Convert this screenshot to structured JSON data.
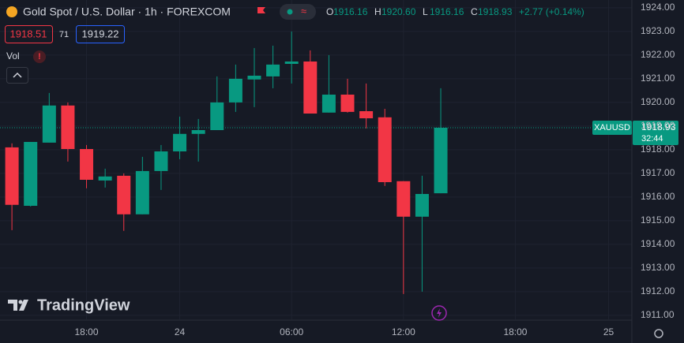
{
  "header": {
    "title": "Gold Spot / U.S. Dollar · 1h · FOREXCOM",
    "ohlc": [
      {
        "key": "O",
        "value": "1916.16"
      },
      {
        "key": "H",
        "value": "1920.60"
      },
      {
        "key": "L",
        "value": "1916.16"
      },
      {
        "key": "C",
        "value": "1918.93"
      }
    ],
    "change": "+2.77 (+0.14%)",
    "bid": "1918.51",
    "spread": "71",
    "ask": "1919.22",
    "volume_label": "Vol"
  },
  "price_tag": {
    "symbol": "XAUUSD",
    "price": "1918.93",
    "countdown": "32:44"
  },
  "logo": "TradingView",
  "chart_data": {
    "type": "candlestick",
    "ylim": [
      1910.83,
      1924.33
    ],
    "yticks": [
      {
        "value": 1911,
        "label": "1911.00"
      },
      {
        "value": 1912,
        "label": "1912.00"
      },
      {
        "value": 1913,
        "label": "1913.00"
      },
      {
        "value": 1914,
        "label": "1914.00"
      },
      {
        "value": 1915,
        "label": "1915.00"
      },
      {
        "value": 1916,
        "label": "1916.00"
      },
      {
        "value": 1917,
        "label": "1917.00"
      },
      {
        "value": 1918,
        "label": "1918.00"
      },
      {
        "value": 1919,
        "label": "1919.00"
      },
      {
        "value": 1920,
        "label": "1920.00"
      },
      {
        "value": 1921,
        "label": "1921.00"
      },
      {
        "value": 1922,
        "label": "1922.00"
      },
      {
        "value": 1923,
        "label": "1923.00"
      },
      {
        "value": 1924,
        "label": "1924.00"
      }
    ],
    "xticks": [
      {
        "value": 4,
        "label": "18:00"
      },
      {
        "value": 9,
        "label": "24"
      },
      {
        "value": 15,
        "label": "06:00"
      },
      {
        "value": 21,
        "label": "12:00"
      },
      {
        "value": 27,
        "label": "18:00"
      },
      {
        "value": 32,
        "label": "25"
      }
    ],
    "xlim": [
      -0.64,
      33.25
    ],
    "up_color": "#089981",
    "down_color": "#f23645",
    "grid": true,
    "last_price": 1918.93,
    "open": [
      1918.1,
      1915.63,
      1918.3,
      1919.87,
      1918.03,
      1916.7,
      1916.9,
      1915.27,
      1917.1,
      1917.93,
      1918.67,
      1918.83,
      1920.0,
      1920.97,
      1921.1,
      1921.63,
      1921.73,
      1919.57,
      1920.33,
      1919.63,
      1919.37,
      1916.67,
      1915.17,
      1916.16
    ],
    "high": [
      1918.27,
      1918.33,
      1920.4,
      1920.0,
      1918.2,
      1917.2,
      1917.0,
      1917.7,
      1918.2,
      1919.4,
      1919.3,
      1921.1,
      1921.6,
      1922.3,
      1922.4,
      1923.0,
      1922.2,
      1922.0,
      1921.0,
      1920.8,
      1919.73,
      1916.67,
      1916.9,
      1920.6
    ],
    "low": [
      1914.6,
      1915.6,
      1918.3,
      1917.5,
      1916.37,
      1916.4,
      1914.57,
      1915.27,
      1916.3,
      1917.6,
      1917.5,
      1918.83,
      1919.6,
      1919.8,
      1920.6,
      1920.8,
      1919.53,
      1919.57,
      1919.57,
      1918.9,
      1916.47,
      1911.9,
      1912.0,
      1916.16
    ],
    "close": [
      1915.67,
      1918.33,
      1919.87,
      1918.03,
      1916.73,
      1916.87,
      1915.27,
      1917.1,
      1917.93,
      1918.67,
      1918.83,
      1920.0,
      1921.0,
      1921.13,
      1921.6,
      1921.73,
      1919.53,
      1920.33,
      1919.6,
      1919.33,
      1916.63,
      1915.17,
      1916.13,
      1918.93
    ]
  }
}
